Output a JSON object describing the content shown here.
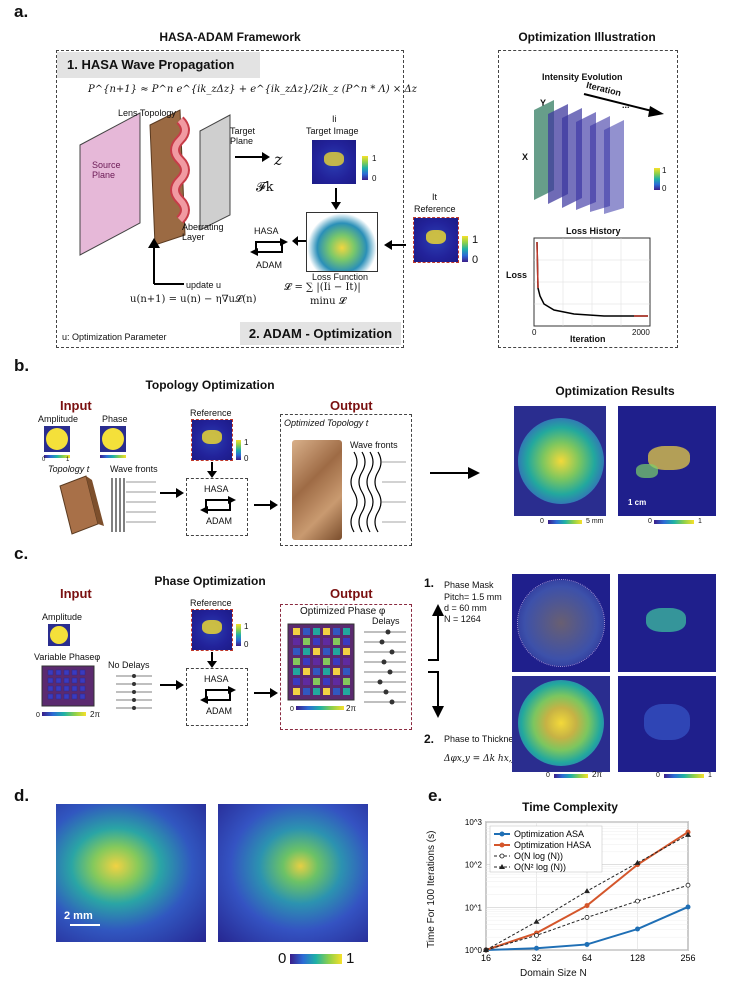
{
  "panel_a": {
    "letter": "a.",
    "framework_title": "HASA-ADAM Framework",
    "box1_title": "1. HASA Wave Propagation",
    "equation_top": "P^{n+1} ≈ P^n e^{ik_zΔz} + e^{ik_zΔz}/2ik_z (P^n * Λ) × Δz",
    "lens_topology": "Lens Topology",
    "source_plane": "Source Plane",
    "target_plane": "Target Plane",
    "z_symbol": "z",
    "fk_symbol": "𝓕k",
    "aberrating_layer": "Aberrating Layer",
    "ii_label": "Ii",
    "target_image": "Target Image",
    "it_label": "It",
    "reference": "Reference",
    "hasa": "HASA",
    "adam": "ADAM",
    "update_u": "update u",
    "loss_function": "Loss Function",
    "loss_eq": "𝓛 = ∑ |(Ii − It)|",
    "min_eq": "minu 𝓛",
    "update_eq": "u(n+1) = u(n) − η∇u𝓛(n)",
    "opt_param": "u: Optimization Parameter",
    "box2_title": "2. ADAM - Optimization",
    "cb_1": "1",
    "cb_0": "0",
    "illustration_title": "Optimization Illustration",
    "intensity_evolution": "Intensity   Evolution",
    "iteration": "Iteration",
    "ellipsis": "...",
    "y_axis": "Y",
    "x_axis": "X",
    "loss_history": "Loss History",
    "loss": "Loss",
    "tick_0": "0",
    "tick_2000": "2000",
    "iteration_axis": "Iteration"
  },
  "panel_b": {
    "letter": "b.",
    "title": "Topology Optimization",
    "input": "Input",
    "amplitude": "Amplitude",
    "phase": "Phase",
    "cb_0": "0",
    "cb_1": "1",
    "topology": "Topology t",
    "wave_fronts": "Wave fronts",
    "reference": "Reference",
    "hasa": "HASA",
    "adam": "ADAM",
    "output": "Output",
    "optimized_topology": "Optimized Topology t",
    "wave_fronts_out": "Wave fronts",
    "results_title": "Optimization Results",
    "scale_cm": "1 cm",
    "cb_left_0": "0",
    "cb_left_5": "5 mm",
    "cb_right_0": "0",
    "cb_right_1": "1"
  },
  "panel_c": {
    "letter": "c.",
    "title": "Phase Optimization",
    "input": "Input",
    "amplitude": "Amplitude",
    "variable_phase": "Variable Phaseφ",
    "no_delays": "No Delays",
    "cb_0": "0",
    "cb_2pi": "2π",
    "reference": "Reference",
    "cb_1": "1",
    "cb_ref0": "0",
    "hasa": "HASA",
    "adam": "ADAM",
    "output": "Output",
    "optimized_phase": "Optimized Phase φ",
    "delays": "Delays",
    "out_0": "0",
    "out_2pi": "2π",
    "step1_num": "1.",
    "step1_title": "Phase Mask",
    "pitch": "Pitch= 1.5 mm",
    "d": "d = 60 mm",
    "n": "N = 1264",
    "step2_num": "2.",
    "step2_title": "Phase to Thickness",
    "step2_eq": "Δφx,y = Δk hx,y",
    "res_cb_0": "0",
    "res_cb_2pi": "2π",
    "res_cb2_0": "0",
    "res_cb2_1": "1"
  },
  "panel_d": {
    "letter": "d.",
    "scale": "2 mm",
    "cb_0": "0",
    "cb_1": "1"
  },
  "panel_e": {
    "letter": "e.",
    "chart_data": {
      "type": "line",
      "title": "Time Complexity",
      "xlabel": "Domain Size N",
      "ylabel": "Time For 100 Iterations (s)",
      "x_scale": "log2",
      "y_scale": "log10",
      "x": [
        16,
        32,
        64,
        128,
        256
      ],
      "x_ticks": [
        "16",
        "32",
        "64",
        "128",
        "256"
      ],
      "y_ticks": [
        "10^0",
        "10^1",
        "10^2",
        "10^3"
      ],
      "ylim": [
        1,
        1000
      ],
      "xlim": [
        16,
        256
      ],
      "grid": true,
      "legend_position": "top-left",
      "series": [
        {
          "name": "Optimization ASA",
          "color": "#1f6fb5",
          "style": "solid-circle",
          "values": [
            1.0,
            1.1,
            1.35,
            3.1,
            10.2
          ]
        },
        {
          "name": "Optimization HASA",
          "color": "#d4562b",
          "style": "solid-circle",
          "values": [
            1.0,
            2.5,
            11.0,
            100.0,
            580.0
          ]
        },
        {
          "name": "O(N log (N))",
          "color": "#222222",
          "style": "dashed-open-circle",
          "values": [
            1.0,
            2.2,
            5.8,
            14.0,
            33.0
          ]
        },
        {
          "name": "O(N² log (N))",
          "color": "#222222",
          "style": "dashed-triangle",
          "values": [
            1.0,
            4.6,
            24.0,
            110.0,
            500.0
          ]
        }
      ]
    }
  }
}
